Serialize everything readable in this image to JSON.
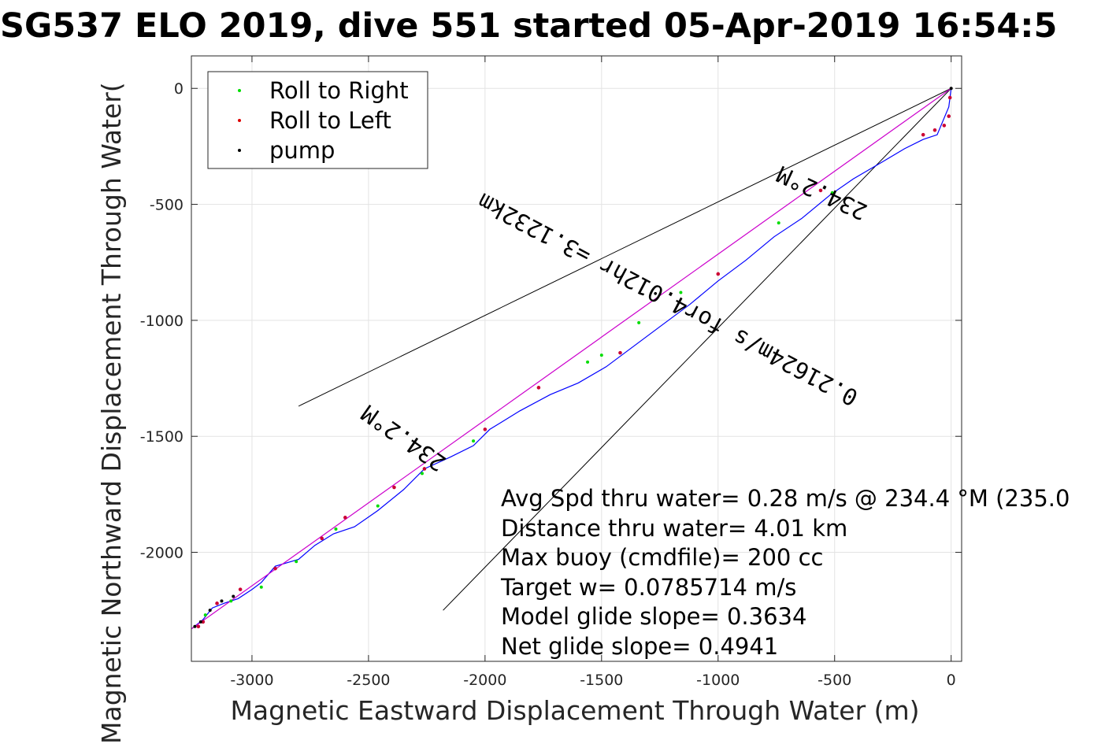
{
  "chart_data": {
    "type": "line",
    "title": "SG537 ELO 2019, dive 551 started 05-Apr-2019 16:54:5",
    "xlabel": "Magnetic Eastward Displacement Through Water (m)",
    "ylabel": "Magnetic Northward Displacement Through Water(",
    "xlim": [
      -3260,
      45
    ],
    "ylim": [
      -2470,
      140
    ],
    "grid": true,
    "xticks": [
      -3000,
      -2500,
      -2000,
      -1500,
      -1000,
      -500,
      0
    ],
    "yticks": [
      0,
      -500,
      -1000,
      -1500,
      -2000
    ],
    "xtick_labels": [
      "-3000",
      "-2500",
      "-2000",
      "-1500",
      "-1000",
      "-500",
      "0"
    ],
    "ytick_labels": [
      "0",
      "-500",
      "-1000",
      "-1500",
      "-2000"
    ],
    "legend": {
      "position": "top-left",
      "entries": [
        {
          "label": "Roll to Right",
          "color": "#00dd00"
        },
        {
          "label": "Roll to Left",
          "color": "#dd0000"
        },
        {
          "label": "pump",
          "color": "#000000"
        }
      ]
    },
    "series": [
      {
        "name": "track",
        "color": "#0000ff",
        "x": [
          0,
          -10,
          -60,
          -120,
          -200,
          -300,
          -420,
          -520,
          -640,
          -760,
          -880,
          -1000,
          -1120,
          -1240,
          -1360,
          -1480,
          -1600,
          -1720,
          -1850,
          -1980,
          -2050,
          -2150,
          -2260,
          -2350,
          -2460,
          -2560,
          -2650,
          -2730,
          -2800,
          -2900,
          -2960,
          -3000,
          -3060,
          -3120,
          -3170,
          -3210,
          -3260
        ],
        "y": [
          0,
          -80,
          -200,
          -220,
          -260,
          -320,
          -390,
          -460,
          -560,
          -640,
          -740,
          -830,
          -930,
          -1020,
          -1110,
          -1200,
          -1270,
          -1320,
          -1390,
          -1470,
          -1540,
          -1590,
          -1640,
          -1730,
          -1820,
          -1890,
          -1920,
          -1970,
          -2030,
          -2060,
          -2130,
          -2160,
          -2200,
          -2220,
          -2240,
          -2290,
          -2330
        ]
      },
      {
        "name": "direct",
        "color": "#cc00cc",
        "x": [
          0,
          -3260
        ],
        "y": [
          0,
          -2330
        ]
      }
    ],
    "points": {
      "roll_right": {
        "color": "#00dd00",
        "x": [
          -510,
          -740,
          -1160,
          -1340,
          -1500,
          -1560,
          -2050,
          -2270,
          -2460,
          -2640,
          -2810,
          -2960,
          -3090,
          -3200
        ],
        "y": [
          -450,
          -580,
          -880,
          -1010,
          -1150,
          -1180,
          -1520,
          -1660,
          -1800,
          -1900,
          -2040,
          -2150,
          -2210,
          -2270
        ]
      },
      "roll_left": {
        "color": "#cc0033",
        "x": [
          -5,
          -10,
          -30,
          -70,
          -120,
          -560,
          -1000,
          -1420,
          -1770,
          -2000,
          -2260,
          -2390,
          -2600,
          -2700,
          -2900,
          -3050,
          -3150,
          -3210,
          -3230
        ],
        "y": [
          -40,
          -120,
          -160,
          -180,
          -200,
          -440,
          -800,
          -1140,
          -1290,
          -1470,
          -1640,
          -1720,
          -1850,
          -1940,
          -2070,
          -2160,
          -2220,
          -2300,
          -2320
        ]
      },
      "pump": {
        "color": "#000000",
        "x": [
          0,
          -3080,
          -3130,
          -3180,
          -3220,
          -3245
        ],
        "y": [
          0,
          -2190,
          -2210,
          -2250,
          -2300,
          -2320
        ]
      }
    },
    "heading_lines": [
      {
        "x": [
          0,
          -2800
        ],
        "y": [
          0,
          -1370
        ]
      },
      {
        "x": [
          0,
          -2180
        ],
        "y": [
          0,
          -2250
        ]
      }
    ],
    "annotations": [
      {
        "text": "234.2°M",
        "x": -540,
        "y": -420,
        "rotation": 205
      },
      {
        "text": "0.21624m/s for4.012hr =3.1232km",
        "x": -1200,
        "y": -880,
        "rotation": 208
      },
      {
        "text": "234.2°M",
        "x": -2330,
        "y": -1480,
        "rotation": 215
      }
    ],
    "info_lines": [
      "Avg Spd thru water=  0.28 m/s @ 234.4 °M (235.0",
      "Distance thru water=  4.01 km",
      "Max buoy (cmdfile)= 200 cc",
      "Target w= 0.0785714 m/s",
      "Model glide slope= 0.3634",
      "Net glide slope= 0.4941"
    ]
  }
}
